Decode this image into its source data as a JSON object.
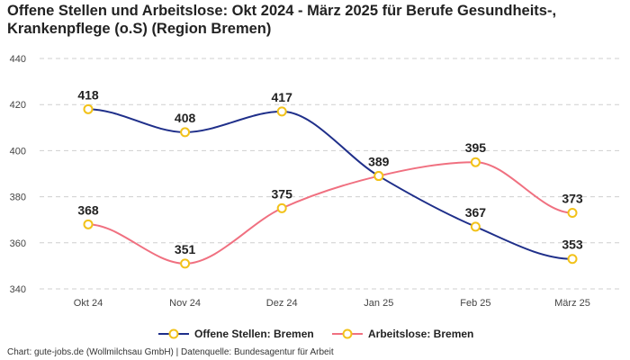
{
  "chart_data": {
    "type": "line",
    "title_lines": [
      "Offene Stellen und Arbeitslose: Okt 2024 - März 2025 für Berufe Gesundheits-,",
      "Krankenpflege (o.S) (Region Bremen)"
    ],
    "categories": [
      "Okt 24",
      "Nov 24",
      "Dez 24",
      "Jan 25",
      "Feb 25",
      "März 25"
    ],
    "series": [
      {
        "name": "Offene Stellen: Bremen",
        "values": [
          418,
          408,
          417,
          389,
          367,
          353
        ],
        "color": "#1f2f8a",
        "labels": [
          "418",
          "408",
          "417",
          "389",
          "367",
          "353"
        ]
      },
      {
        "name": "Arbeitslose: Bremen",
        "values": [
          368,
          351,
          375,
          389,
          395,
          373
        ],
        "color": "#f07080",
        "labels": [
          "368",
          "351",
          "375",
          "",
          "395",
          "373"
        ]
      }
    ],
    "marker_color": "#f2c21a",
    "ylim": [
      340,
      440
    ],
    "yticks": [
      340,
      360,
      380,
      400,
      420,
      440
    ],
    "ytick_labels": [
      "340",
      "360",
      "380",
      "400",
      "420",
      "440"
    ],
    "grid": true,
    "legend_position": "bottom-center"
  },
  "footer": "Chart: gute-jobs.de (Wollmilchsau GmbH) | Datenquelle: Bundesagentur für Arbeit"
}
